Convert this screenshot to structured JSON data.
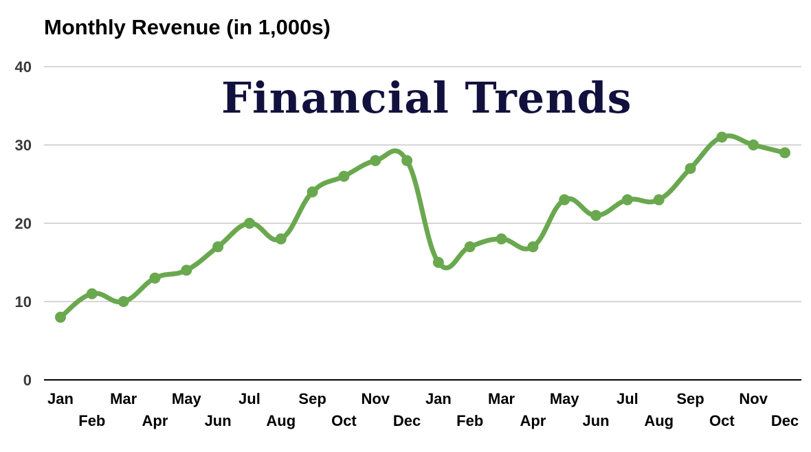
{
  "chart_data": {
    "type": "line",
    "title": "Monthly Revenue (in 1,000s)",
    "overlay_text": "Financial Trends",
    "xlabel": "",
    "ylabel": "",
    "ylim": [
      0,
      40
    ],
    "yticks": [
      0,
      10,
      20,
      30,
      40
    ],
    "grid": true,
    "legend": "none",
    "categories": [
      "Jan",
      "Feb",
      "Mar",
      "Apr",
      "May",
      "Jun",
      "Jul",
      "Aug",
      "Sep",
      "Oct",
      "Nov",
      "Dec",
      "Jan",
      "Feb",
      "Mar",
      "Apr",
      "May",
      "Jun",
      "Jul",
      "Aug",
      "Sep",
      "Oct",
      "Nov",
      "Dec"
    ],
    "series": [
      {
        "name": "Monthly Revenue",
        "values": [
          8,
          11,
          10,
          13,
          14,
          17,
          20,
          18,
          24,
          26,
          28,
          28,
          15,
          17,
          18,
          17,
          23,
          21,
          23,
          23,
          27,
          31,
          30,
          29
        ]
      }
    ],
    "colors": {
      "line": "#6aa84f",
      "grid": "#c8c8c8",
      "axis": "#000000"
    }
  }
}
